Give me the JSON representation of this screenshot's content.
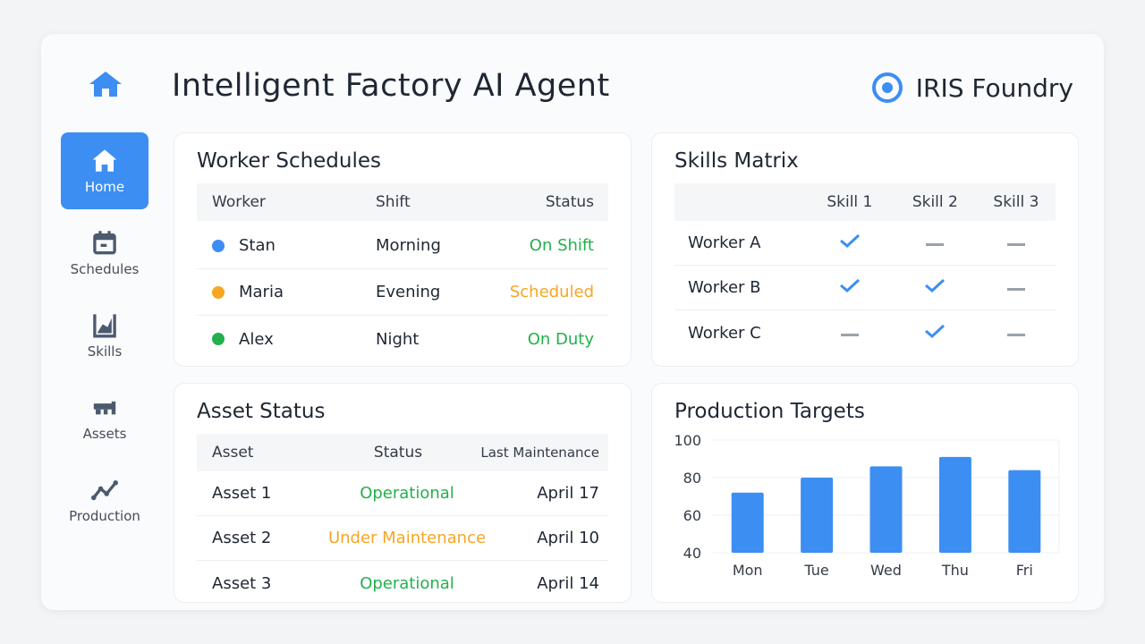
{
  "header": {
    "title": "Intelligent Factory AI Agent",
    "brand": "IRIS Foundry",
    "accent": "#3d8ef2"
  },
  "nav": [
    {
      "label": "Home",
      "icon": "home-icon",
      "active": true
    },
    {
      "label": "Schedules",
      "icon": "calendar-icon"
    },
    {
      "label": "Skills",
      "icon": "chart-icon"
    },
    {
      "label": "Assets",
      "icon": "machine-icon"
    },
    {
      "label": "Production",
      "icon": "trend-icon"
    }
  ],
  "schedules": {
    "title": "Worker Schedules",
    "headers": [
      "Worker",
      "Shift",
      "Status"
    ],
    "rows": [
      {
        "worker": "Stan",
        "shift": "Morning",
        "status": "On Shift",
        "color": "#3d8ef2",
        "status_color": "#22b14c"
      },
      {
        "worker": "Maria",
        "shift": "Evening",
        "status": "Scheduled",
        "color": "#f5a623",
        "status_color": "#f5a623"
      },
      {
        "worker": "Alex",
        "shift": "Night",
        "status": "On Duty",
        "color": "#22b14c",
        "status_color": "#22b14c"
      }
    ]
  },
  "skills": {
    "title": "Skills Matrix",
    "headers": [
      "",
      "Skill 1",
      "Skill 2",
      "Skill 3"
    ],
    "rows": [
      {
        "name": "Worker A",
        "skills": [
          true,
          false,
          false
        ]
      },
      {
        "name": "Worker B",
        "skills": [
          true,
          true,
          false
        ]
      },
      {
        "name": "Worker C",
        "skills": [
          false,
          true,
          false
        ]
      }
    ]
  },
  "assets": {
    "title": "Asset Status",
    "headers": [
      "Asset",
      "Status",
      "Last Maintenance"
    ],
    "rows": [
      {
        "asset": "Asset 1",
        "status": "Operational",
        "date": "April 17",
        "status_color": "#22b14c"
      },
      {
        "asset": "Asset 2",
        "status": "Under Maintenance",
        "date": "April 10",
        "status_color": "#f5a623"
      },
      {
        "asset": "Asset 3",
        "status": "Operational",
        "date": "April 14",
        "status_color": "#22b14c"
      }
    ]
  },
  "chart_data": {
    "type": "bar",
    "title": "Production Targets",
    "categories": [
      "Mon",
      "Tue",
      "Wed",
      "Thu",
      "Fri"
    ],
    "values": [
      72,
      80,
      86,
      91,
      84
    ],
    "ylim": [
      40,
      100
    ],
    "yticks": [
      "100",
      "80",
      "60",
      "40"
    ],
    "grid": true,
    "color": "#3d8ef2"
  }
}
